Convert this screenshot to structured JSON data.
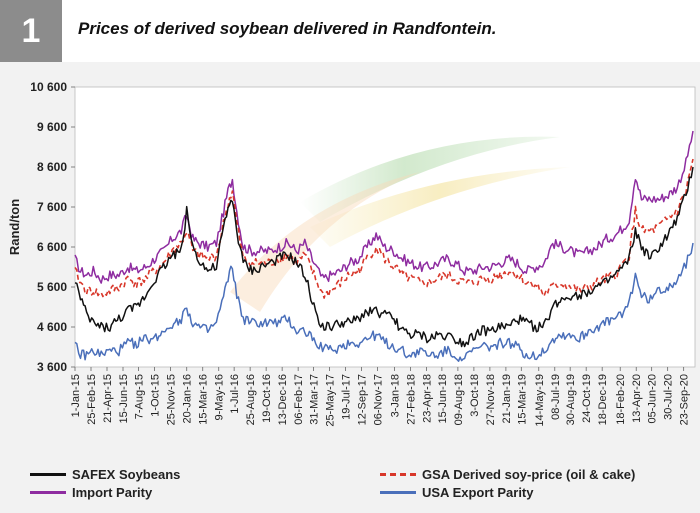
{
  "header": {
    "number": "1",
    "title": "Prices of derived soybean delivered in Randfontein."
  },
  "chart_data": {
    "type": "line",
    "ylabel": "Rand/ton",
    "ylim": [
      3600,
      10600
    ],
    "yticks": [
      "3 600",
      "4 600",
      "5 600",
      "6 600",
      "7 600",
      "8 600",
      "9 600",
      "10 600"
    ],
    "ytick_values": [
      3600,
      4600,
      5600,
      6600,
      7600,
      8600,
      9600,
      10600
    ],
    "xlim": [
      "2015-01-01",
      "2020-11-01"
    ],
    "xticks": [
      {
        "label": "1-Jan-15",
        "date": "2015-01-01"
      },
      {
        "label": "25-Feb-15",
        "date": "2015-02-25"
      },
      {
        "label": "21-Apr-15",
        "date": "2015-04-21"
      },
      {
        "label": "15-Jun-15",
        "date": "2015-06-15"
      },
      {
        "label": "7-Aug-15",
        "date": "2015-08-07"
      },
      {
        "label": "1-Oct-15",
        "date": "2015-10-01"
      },
      {
        "label": "25-Nov-15",
        "date": "2015-11-25"
      },
      {
        "label": "20-Jan-16",
        "date": "2016-01-20"
      },
      {
        "label": "15-Mar-16",
        "date": "2016-03-15"
      },
      {
        "label": "9-May-16",
        "date": "2016-05-09"
      },
      {
        "label": "1-Jul-16",
        "date": "2016-07-01"
      },
      {
        "label": "25-Aug-16",
        "date": "2016-08-25"
      },
      {
        "label": "19-Oct-16",
        "date": "2016-10-19"
      },
      {
        "label": "13-Dec-16",
        "date": "2016-12-13"
      },
      {
        "label": "06-Feb-17",
        "date": "2017-02-06"
      },
      {
        "label": "31-Mar-17",
        "date": "2017-03-31"
      },
      {
        "label": "25-May-17",
        "date": "2017-05-25"
      },
      {
        "label": "19-Jul-17",
        "date": "2017-07-19"
      },
      {
        "label": "12-Sep-17",
        "date": "2017-09-12"
      },
      {
        "label": "06-Nov-17",
        "date": "2017-11-06"
      },
      {
        "label": "3-Jan-18",
        "date": "2018-01-03"
      },
      {
        "label": "27-Feb-18",
        "date": "2018-02-27"
      },
      {
        "label": "23-Apr-18",
        "date": "2018-04-23"
      },
      {
        "label": "15-Jun-18",
        "date": "2018-06-15"
      },
      {
        "label": "09-Aug-18",
        "date": "2018-08-09"
      },
      {
        "label": "3-Oct-18",
        "date": "2018-10-03"
      },
      {
        "label": "27-Nov-18",
        "date": "2018-11-27"
      },
      {
        "label": "21-Jan-19",
        "date": "2019-01-21"
      },
      {
        "label": "15-Mar-19",
        "date": "2019-03-15"
      },
      {
        "label": "14-May-19",
        "date": "2019-05-14"
      },
      {
        "label": "08-Jul-19",
        "date": "2019-07-08"
      },
      {
        "label": "30-Aug-19",
        "date": "2019-08-30"
      },
      {
        "label": "24-Oct-19",
        "date": "2019-10-24"
      },
      {
        "label": "18-Dec-19",
        "date": "2019-12-18"
      },
      {
        "label": "18-Feb-20",
        "date": "2020-02-18"
      },
      {
        "label": "13-Apr-20",
        "date": "2020-04-13"
      },
      {
        "label": "05-Jun-20",
        "date": "2020-06-05"
      },
      {
        "label": "30-Jul-20",
        "date": "2020-07-30"
      },
      {
        "label": "23-Sep-20",
        "date": "2020-09-23"
      }
    ],
    "grid": false,
    "legend_position": "bottom",
    "series": [
      {
        "name": "Import Parity",
        "color": "#8e2ca0",
        "dash": "solid",
        "x": [
          "2015-01-01",
          "2015-01-20",
          "2015-02-10",
          "2015-03-05",
          "2015-04-01",
          "2015-05-01",
          "2015-06-01",
          "2015-07-01",
          "2015-08-01",
          "2015-09-01",
          "2015-10-01",
          "2015-11-01",
          "2015-12-01",
          "2016-01-01",
          "2016-01-20",
          "2016-02-10",
          "2016-03-01",
          "2016-04-01",
          "2016-05-01",
          "2016-05-20",
          "2016-06-10",
          "2016-06-25",
          "2016-07-10",
          "2016-08-01",
          "2016-09-01",
          "2016-10-01",
          "2016-11-01",
          "2016-12-01",
          "2017-01-01",
          "2017-02-01",
          "2017-03-01",
          "2017-04-01",
          "2017-05-01",
          "2017-06-01",
          "2017-07-01",
          "2017-08-01",
          "2017-09-01",
          "2017-10-01",
          "2017-11-01",
          "2017-12-01",
          "2018-01-01",
          "2018-02-01",
          "2018-03-01",
          "2018-04-01",
          "2018-05-01",
          "2018-06-01",
          "2018-07-01",
          "2018-08-01",
          "2018-09-01",
          "2018-10-01",
          "2018-11-01",
          "2018-12-01",
          "2019-01-01",
          "2019-02-01",
          "2019-03-01",
          "2019-04-01",
          "2019-05-01",
          "2019-06-01",
          "2019-07-01",
          "2019-08-01",
          "2019-09-01",
          "2019-10-01",
          "2019-11-01",
          "2019-12-01",
          "2020-01-01",
          "2020-02-01",
          "2020-03-01",
          "2020-03-20",
          "2020-04-10",
          "2020-05-01",
          "2020-06-01",
          "2020-07-01",
          "2020-08-01",
          "2020-09-01",
          "2020-10-01",
          "2020-10-25"
        ],
        "y": [
          6300,
          6000,
          5900,
          6000,
          5800,
          5900,
          5900,
          6100,
          6000,
          6100,
          6300,
          6500,
          6800,
          7000,
          7400,
          6800,
          6700,
          6600,
          6700,
          7300,
          8000,
          8300,
          7500,
          6600,
          6500,
          6500,
          6500,
          6600,
          6700,
          6500,
          6700,
          6200,
          5800,
          5900,
          6000,
          6200,
          6300,
          6600,
          6900,
          6600,
          6500,
          6300,
          6200,
          6100,
          6100,
          6200,
          6300,
          6200,
          6000,
          6000,
          6100,
          6100,
          6200,
          6300,
          6200,
          6000,
          6100,
          6200,
          6700,
          6600,
          6500,
          6400,
          6500,
          6600,
          6800,
          6900,
          7100,
          7300,
          8400,
          7800,
          7800,
          7800,
          7900,
          8100,
          8700,
          9500
        ]
      },
      {
        "name": "GSA Derived soy-price (oil & cake)",
        "color": "#d8372a",
        "dash": "dashed",
        "x": [
          "2015-01-01",
          "2015-01-20",
          "2015-02-10",
          "2015-03-05",
          "2015-04-01",
          "2015-05-01",
          "2015-06-01",
          "2015-07-01",
          "2015-08-01",
          "2015-09-01",
          "2015-10-01",
          "2015-11-01",
          "2015-12-01",
          "2016-01-01",
          "2016-01-20",
          "2016-02-10",
          "2016-03-01",
          "2016-04-01",
          "2016-05-01",
          "2016-05-20",
          "2016-06-10",
          "2016-06-25",
          "2016-07-10",
          "2016-08-01",
          "2016-09-01",
          "2016-10-01",
          "2016-11-01",
          "2016-12-01",
          "2017-01-01",
          "2017-02-01",
          "2017-03-01",
          "2017-04-01",
          "2017-05-01",
          "2017-06-01",
          "2017-07-01",
          "2017-08-01",
          "2017-09-01",
          "2017-10-01",
          "2017-11-01",
          "2017-12-01",
          "2018-01-01",
          "2018-02-01",
          "2018-03-01",
          "2018-04-01",
          "2018-05-01",
          "2018-06-01",
          "2018-07-01",
          "2018-08-01",
          "2018-09-01",
          "2018-10-01",
          "2018-11-01",
          "2018-12-01",
          "2019-01-01",
          "2019-02-01",
          "2019-03-01",
          "2019-04-01",
          "2019-05-01",
          "2019-06-01",
          "2019-07-01",
          "2019-08-01",
          "2019-09-01",
          "2019-10-01",
          "2019-11-01",
          "2019-12-01",
          "2020-01-01",
          "2020-02-01",
          "2020-03-01",
          "2020-03-20",
          "2020-04-10",
          "2020-05-01",
          "2020-06-01",
          "2020-07-01",
          "2020-08-01",
          "2020-09-01",
          "2020-10-01",
          "2020-10-25"
        ],
        "y": [
          6000,
          5700,
          5500,
          5500,
          5400,
          5500,
          5600,
          5800,
          5700,
          5800,
          6000,
          6200,
          6500,
          6700,
          7000,
          6500,
          6400,
          6300,
          6400,
          7000,
          7700,
          8000,
          7200,
          6300,
          6200,
          6200,
          6200,
          6300,
          6400,
          6200,
          6400,
          5900,
          5400,
          5500,
          5700,
          5900,
          6000,
          6300,
          6600,
          6300,
          6100,
          5900,
          5800,
          5700,
          5700,
          5800,
          5900,
          5800,
          5700,
          5700,
          5800,
          5800,
          5900,
          6000,
          5900,
          5700,
          5700,
          5400,
          5600,
          5700,
          5600,
          5500,
          5600,
          5700,
          5800,
          5900,
          6200,
          6400,
          7500,
          7000,
          7000,
          7100,
          7300,
          7500,
          8000,
          8800
        ]
      },
      {
        "name": "SAFEX Soybeans",
        "color": "#111111",
        "dash": "solid",
        "x": [
          "2015-01-01",
          "2015-01-20",
          "2015-02-10",
          "2015-03-05",
          "2015-04-01",
          "2015-05-01",
          "2015-06-01",
          "2015-07-01",
          "2015-08-01",
          "2015-09-01",
          "2015-10-01",
          "2015-11-01",
          "2015-12-01",
          "2016-01-01",
          "2016-01-20",
          "2016-02-10",
          "2016-03-01",
          "2016-04-01",
          "2016-05-01",
          "2016-05-20",
          "2016-06-10",
          "2016-06-25",
          "2016-07-10",
          "2016-08-01",
          "2016-09-01",
          "2016-10-01",
          "2016-11-01",
          "2016-12-01",
          "2017-01-01",
          "2017-02-01",
          "2017-03-01",
          "2017-04-01",
          "2017-05-01",
          "2017-06-01",
          "2017-07-01",
          "2017-08-01",
          "2017-09-01",
          "2017-10-01",
          "2017-11-01",
          "2017-12-01",
          "2018-01-01",
          "2018-02-01",
          "2018-03-01",
          "2018-04-01",
          "2018-05-01",
          "2018-06-01",
          "2018-07-01",
          "2018-08-01",
          "2018-09-01",
          "2018-10-01",
          "2018-11-01",
          "2018-12-01",
          "2019-01-01",
          "2019-02-01",
          "2019-03-01",
          "2019-04-01",
          "2019-05-01",
          "2019-06-01",
          "2019-07-01",
          "2019-08-01",
          "2019-09-01",
          "2019-10-01",
          "2019-11-01",
          "2019-12-01",
          "2020-01-01",
          "2020-02-01",
          "2020-03-01",
          "2020-03-20",
          "2020-04-10",
          "2020-05-01",
          "2020-06-01",
          "2020-07-01",
          "2020-08-01",
          "2020-09-01",
          "2020-10-01",
          "2020-10-25"
        ],
        "y": [
          5800,
          5300,
          4900,
          4700,
          4600,
          4600,
          4800,
          5000,
          5100,
          5400,
          5800,
          6100,
          6400,
          6500,
          7500,
          6600,
          6300,
          6000,
          6100,
          6900,
          7500,
          7800,
          7000,
          6200,
          6000,
          6100,
          6200,
          6300,
          6400,
          6200,
          5900,
          5100,
          4600,
          4600,
          4700,
          4700,
          4800,
          5000,
          5000,
          4900,
          4800,
          4500,
          4400,
          4400,
          4300,
          4400,
          4400,
          4300,
          4200,
          4400,
          4500,
          4500,
          4600,
          4600,
          4800,
          4700,
          4600,
          4600,
          5100,
          5300,
          5400,
          5400,
          5500,
          5600,
          5700,
          5900,
          6100,
          6300,
          7000,
          6600,
          6300,
          6600,
          6900,
          7300,
          7900,
          8600
        ]
      },
      {
        "name": "USA Export Parity",
        "color": "#4a6fba",
        "dash": "solid",
        "x": [
          "2015-01-01",
          "2015-01-20",
          "2015-02-10",
          "2015-03-05",
          "2015-04-01",
          "2015-05-01",
          "2015-06-01",
          "2015-07-01",
          "2015-08-01",
          "2015-09-01",
          "2015-10-01",
          "2015-11-01",
          "2015-12-01",
          "2016-01-01",
          "2016-01-20",
          "2016-02-10",
          "2016-03-01",
          "2016-04-01",
          "2016-05-01",
          "2016-05-20",
          "2016-06-10",
          "2016-06-25",
          "2016-07-10",
          "2016-08-01",
          "2016-09-01",
          "2016-10-01",
          "2016-11-01",
          "2016-12-01",
          "2017-01-01",
          "2017-02-01",
          "2017-03-01",
          "2017-04-01",
          "2017-05-01",
          "2017-06-01",
          "2017-07-01",
          "2017-08-01",
          "2017-09-01",
          "2017-10-01",
          "2017-11-01",
          "2017-12-01",
          "2018-01-01",
          "2018-02-01",
          "2018-03-01",
          "2018-04-01",
          "2018-05-01",
          "2018-06-01",
          "2018-07-01",
          "2018-08-01",
          "2018-09-01",
          "2018-10-01",
          "2018-11-01",
          "2018-12-01",
          "2019-01-01",
          "2019-02-01",
          "2019-03-01",
          "2019-04-01",
          "2019-05-01",
          "2019-06-01",
          "2019-07-01",
          "2019-08-01",
          "2019-09-01",
          "2019-10-01",
          "2019-11-01",
          "2019-12-01",
          "2020-01-01",
          "2020-02-01",
          "2020-03-01",
          "2020-03-20",
          "2020-04-10",
          "2020-05-01",
          "2020-06-01",
          "2020-07-01",
          "2020-08-01",
          "2020-09-01",
          "2020-10-01",
          "2020-10-25"
        ],
        "y": [
          4200,
          3900,
          3900,
          4000,
          3900,
          4000,
          4000,
          4200,
          4200,
          4300,
          4300,
          4500,
          4700,
          4800,
          5100,
          4700,
          4600,
          4500,
          4700,
          5200,
          5800,
          6100,
          5400,
          4800,
          4700,
          4700,
          4700,
          4700,
          4800,
          4500,
          4500,
          4300,
          4100,
          4000,
          4100,
          4200,
          4200,
          4300,
          4400,
          4200,
          4100,
          4000,
          3900,
          4000,
          3900,
          3900,
          4000,
          3900,
          3800,
          4000,
          4100,
          4100,
          4200,
          4200,
          4100,
          3900,
          3900,
          4000,
          4300,
          4400,
          4400,
          4300,
          4500,
          4600,
          4700,
          4800,
          5000,
          5200,
          5900,
          5400,
          5300,
          5500,
          5600,
          5800,
          6200,
          6700
        ]
      }
    ],
    "legend": [
      {
        "name": "SAFEX Soybeans",
        "color": "#111111",
        "dash": "solid"
      },
      {
        "name": "GSA Derived soy-price (oil & cake)",
        "color": "#d8372a",
        "dash": "dashed"
      },
      {
        "name": "Import Parity",
        "color": "#8e2ca0",
        "dash": "solid"
      },
      {
        "name": "USA Export Parity",
        "color": "#4a6fba",
        "dash": "solid"
      }
    ]
  }
}
